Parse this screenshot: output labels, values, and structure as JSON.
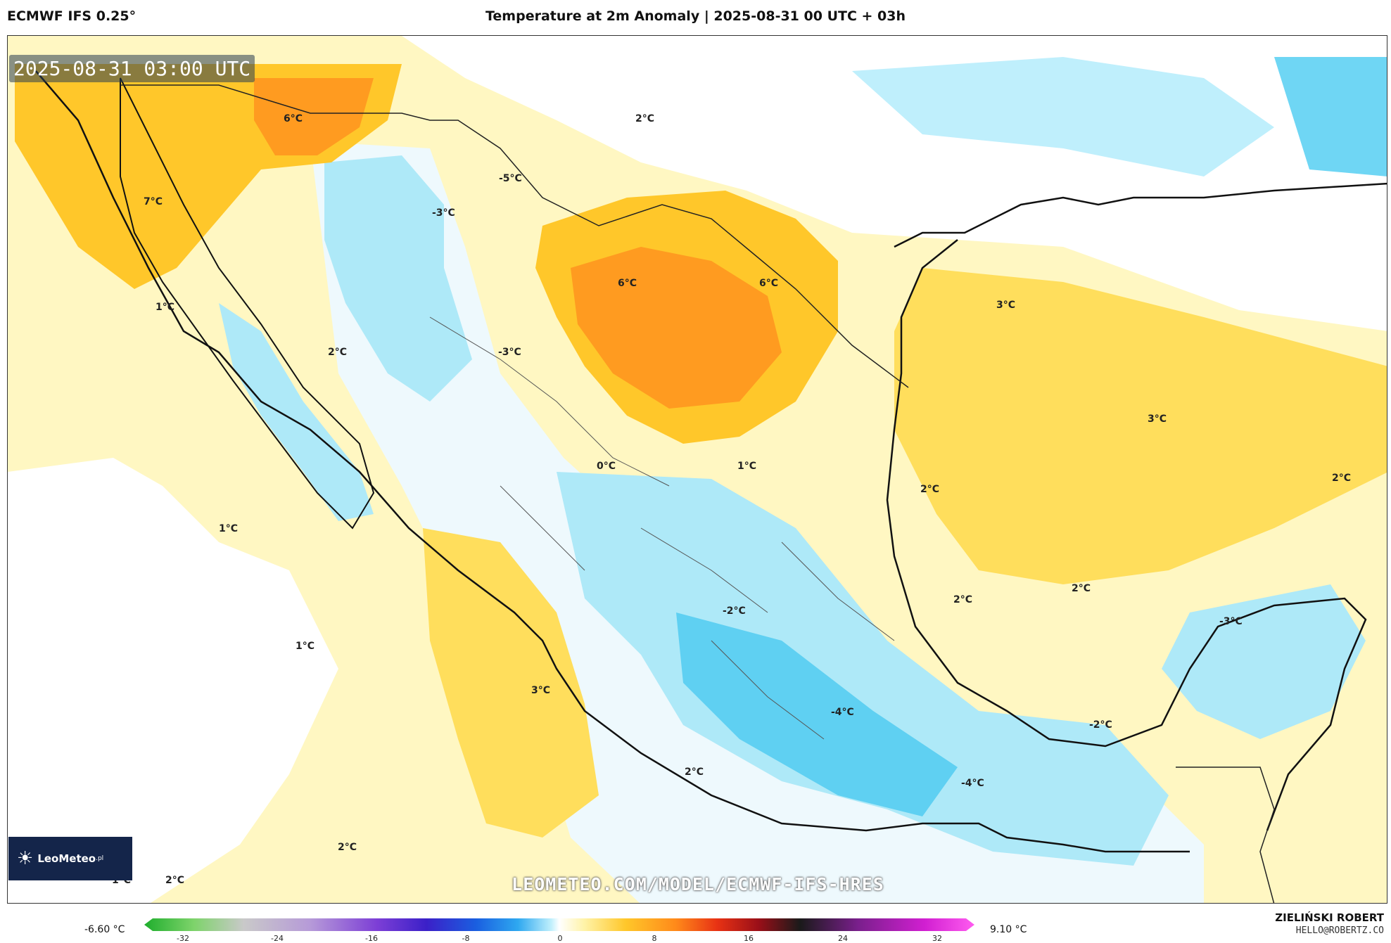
{
  "header": {
    "model": "ECMWF IFS 0.25°",
    "title": "Temperature at 2m Anomaly | 2025-08-31 00 UTC + 03h"
  },
  "map": {
    "timestamp": "2025-08-31 03:00 UTC",
    "watermark_url": "LEOMETEO.COM/MODEL/ECMWF-IFS-HRES",
    "logo_text": "LeoMeteo",
    "logo_suffix": ".pl",
    "labels": [
      {
        "id": "l1",
        "text": "6°C"
      },
      {
        "id": "l2",
        "text": "2°C"
      },
      {
        "id": "l3",
        "text": "7°C"
      },
      {
        "id": "l4",
        "text": "-5°C"
      },
      {
        "id": "l5",
        "text": "-3°C"
      },
      {
        "id": "l6",
        "text": "1°C"
      },
      {
        "id": "l7",
        "text": "6°C"
      },
      {
        "id": "l8",
        "text": "6°C"
      },
      {
        "id": "l9",
        "text": "2°C"
      },
      {
        "id": "l10",
        "text": "-3°C"
      },
      {
        "id": "l11",
        "text": "3°C"
      },
      {
        "id": "l12",
        "text": "0°C"
      },
      {
        "id": "l13",
        "text": "1°C"
      },
      {
        "id": "l14",
        "text": "3°C"
      },
      {
        "id": "l15",
        "text": "2°C"
      },
      {
        "id": "l16",
        "text": "2°C"
      },
      {
        "id": "l17",
        "text": "1°C"
      },
      {
        "id": "l18",
        "text": "2°C"
      },
      {
        "id": "l19",
        "text": "-2°C"
      },
      {
        "id": "l20",
        "text": "2°C"
      },
      {
        "id": "l21",
        "text": "-3°C"
      },
      {
        "id": "l22",
        "text": "1°C"
      },
      {
        "id": "l23",
        "text": "3°C"
      },
      {
        "id": "l24",
        "text": "-4°C"
      },
      {
        "id": "l25",
        "text": "-2°C"
      },
      {
        "id": "l26",
        "text": "2°C"
      },
      {
        "id": "l27",
        "text": "-4°C"
      },
      {
        "id": "l28",
        "text": "2°C"
      },
      {
        "id": "l29",
        "text": "1°C"
      },
      {
        "id": "l30",
        "text": "2°C"
      }
    ]
  },
  "legend": {
    "min_label": "-6.60 °C",
    "max_label": "9.10 °C",
    "ticks": [
      "-32",
      "-24",
      "-16",
      "-8",
      "0",
      "8",
      "16",
      "24",
      "32"
    ],
    "colors": [
      "#1fae2d",
      "#7ed36b",
      "#c9c9c9",
      "#b69ad8",
      "#7d3fd6",
      "#3b20c8",
      "#1a5fe0",
      "#2ea8f0",
      "#bfeffc",
      "#ffffff",
      "#fff3a8",
      "#ffc72a",
      "#ff8a1a",
      "#e83214",
      "#9a0f18",
      "#1a1a1a",
      "#7a1f8c",
      "#d11fd1",
      "#ff5cf0"
    ]
  },
  "footer": {
    "author": "ZIELIŃSKI ROBERT",
    "email": "HELLO@ROBERTZ.CO"
  }
}
